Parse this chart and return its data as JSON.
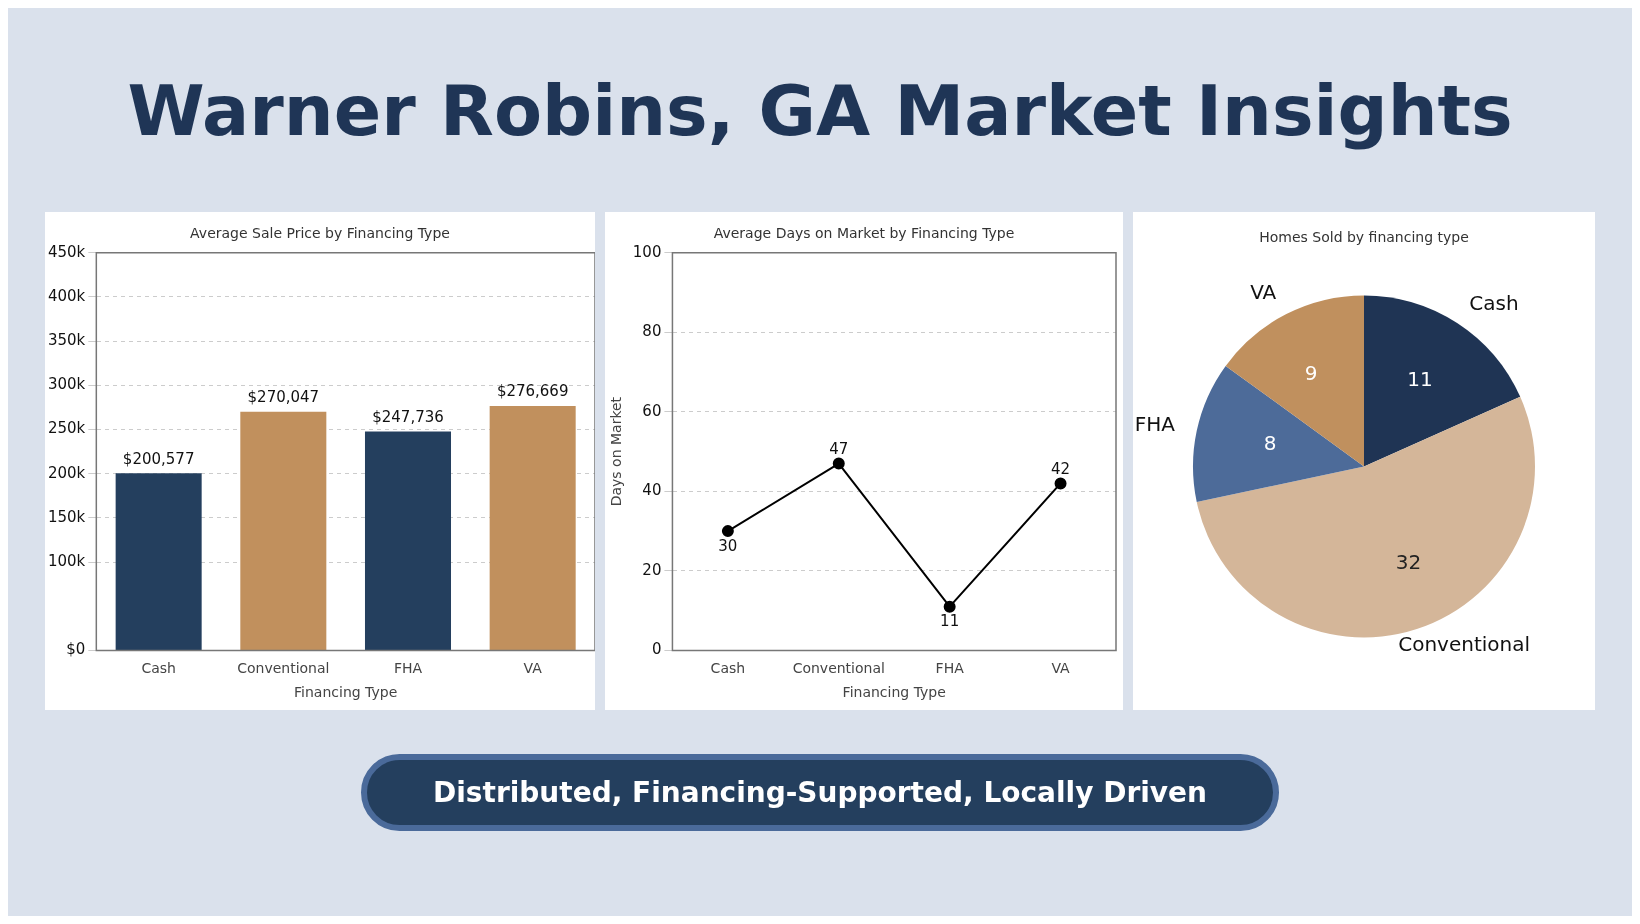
{
  "chart_data": [
    {
      "type": "other",
      "title": "Warner Robins, GA Market Insights"
    },
    {
      "type": "bar",
      "title": "Average Sale Price by Financing Type",
      "xlabel": "Financing Type",
      "categories": [
        "Cash",
        "Conventional",
        "FHA",
        "VA"
      ],
      "values": [
        200577,
        270047,
        247736,
        276669
      ],
      "colors": [
        "#243f5e",
        "#c1905d",
        "#243f5e",
        "#c1905d"
      ],
      "value_labels": [
        "$200,577",
        "$270,047",
        "$247,736",
        "$276,669"
      ],
      "ylim": [
        0,
        450000
      ],
      "yticks": [
        {
          "value": 0,
          "label": "$0"
        },
        {
          "value": 100000,
          "label": "100k"
        },
        {
          "value": 150000,
          "label": "150k"
        },
        {
          "value": 200000,
          "label": "200k"
        },
        {
          "value": 250000,
          "label": "250k"
        },
        {
          "value": 300000,
          "label": "300k"
        },
        {
          "value": 350000,
          "label": "350k"
        },
        {
          "value": 400000,
          "label": "400k"
        },
        {
          "value": 450000,
          "label": "450k"
        }
      ],
      "grid": "y"
    },
    {
      "type": "line",
      "title": "Average Days on Market by Financing Type",
      "xlabel": "Financing Type",
      "ylabel": "Days on Market",
      "categories": [
        "Cash",
        "Conventional",
        "FHA",
        "VA"
      ],
      "values": [
        30,
        47,
        11,
        42
      ],
      "color": "#000000",
      "marker": "circle",
      "data_labels": true,
      "ylim": [
        0,
        100
      ],
      "yticks": [
        0,
        20,
        40,
        60,
        80,
        100
      ],
      "grid": "y"
    },
    {
      "type": "pie",
      "title": "Homes Sold by financing type",
      "categories": [
        "Cash",
        "Conventional",
        "FHA",
        "VA"
      ],
      "values": [
        11,
        32,
        8,
        9
      ],
      "colors": [
        "#1f3454",
        "#d4b699",
        "#4d6b99",
        "#c0905e"
      ],
      "data_labels": true
    },
    {
      "type": "other",
      "annotations": [
        "Distributed, Financing-Supported, Locally Driven"
      ]
    }
  ]
}
